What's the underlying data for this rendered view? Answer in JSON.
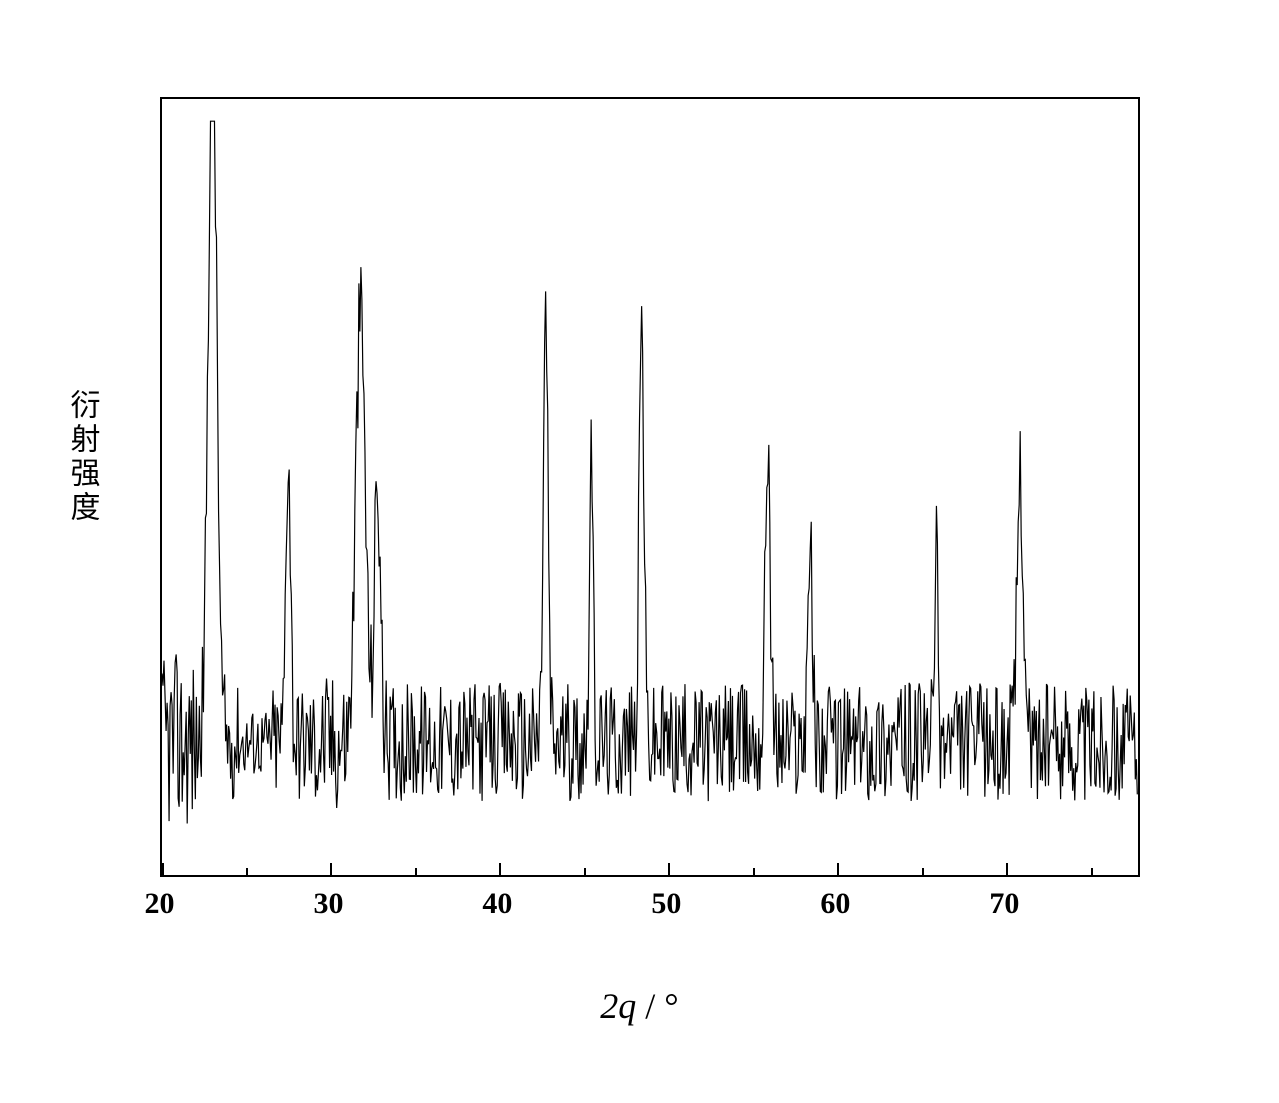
{
  "chart": {
    "type": "xrd-line",
    "ylabel": "衍射强度",
    "xlabel_var": "2q",
    "xlabel_separator": " / ",
    "xlabel_unit": "°",
    "xlim": [
      20,
      78
    ],
    "ylim": [
      0,
      1.05
    ],
    "xticks_major": [
      20,
      30,
      40,
      50,
      60,
      70
    ],
    "xticks_minor": [
      25,
      35,
      45,
      55,
      65,
      75
    ],
    "background_color": "#ffffff",
    "line_color": "#000000",
    "line_width": 1.2,
    "border_color": "#000000",
    "border_width": 2,
    "tick_fontsize": 30,
    "tick_fontweight": "bold",
    "label_fontsize": 32,
    "noise_baseline": 0.18,
    "noise_amplitude": 0.08,
    "peaks": [
      {
        "x": 23.0,
        "height": 0.98,
        "width": 0.7
      },
      {
        "x": 27.5,
        "height": 0.4,
        "width": 0.4
      },
      {
        "x": 31.8,
        "height": 0.58,
        "width": 0.8
      },
      {
        "x": 32.8,
        "height": 0.35,
        "width": 0.5
      },
      {
        "x": 42.8,
        "height": 0.57,
        "width": 0.4
      },
      {
        "x": 45.5,
        "height": 0.4,
        "width": 0.3
      },
      {
        "x": 48.5,
        "height": 0.57,
        "width": 0.4
      },
      {
        "x": 56.0,
        "height": 0.42,
        "width": 0.4
      },
      {
        "x": 58.5,
        "height": 0.27,
        "width": 0.4
      },
      {
        "x": 66.0,
        "height": 0.26,
        "width": 0.3
      },
      {
        "x": 71.0,
        "height": 0.38,
        "width": 0.5
      }
    ],
    "noise_segments": [
      {
        "x_start": 20.0,
        "x_end": 22.0,
        "amp_scale": 1.5
      },
      {
        "x_start": 24.5,
        "x_end": 26.5,
        "amp_scale": 0.6
      },
      {
        "x_start": 29.0,
        "x_end": 31.0,
        "amp_scale": 1.2
      }
    ]
  }
}
